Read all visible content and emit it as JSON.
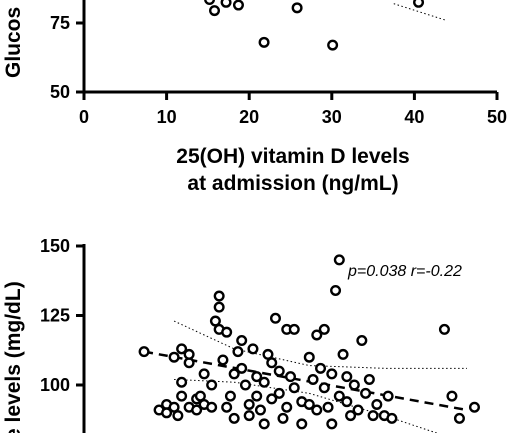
{
  "chart_data": [
    {
      "type": "scatter",
      "title": "",
      "xlabel_line1": "25(OH) vitamin D levels",
      "xlabel_line2": "at admission (ng/mL)",
      "ylabel": "Glucos",
      "xlim": [
        0,
        50
      ],
      "ylim": [
        50,
        100
      ],
      "x_ticks": [
        0,
        10,
        20,
        30,
        40,
        50
      ],
      "y_ticks": [
        50,
        75
      ],
      "points": [
        {
          "x": 15.2,
          "y": 83.5
        },
        {
          "x": 15.8,
          "y": 79.5
        },
        {
          "x": 17.2,
          "y": 82.5
        },
        {
          "x": 18.7,
          "y": 81.5
        },
        {
          "x": 25.8,
          "y": 80.5
        },
        {
          "x": 21.8,
          "y": 68
        },
        {
          "x": 30.1,
          "y": 67
        },
        {
          "x": 40.5,
          "y": 82.5
        }
      ],
      "ci_upper": [
        {
          "x": 37.5,
          "y": 82
        },
        {
          "x": 43.8,
          "y": 76
        }
      ]
    },
    {
      "type": "scatter",
      "title": "",
      "ylabel": "e levels (mg/dL)",
      "annotation": "p=0.038 r=-0.22",
      "ylim": [
        80,
        150
      ],
      "y_ticks": [
        100,
        125,
        150
      ],
      "x_ticks": [],
      "points": [
        {
          "x": 8,
          "y": 112
        },
        {
          "x": 10,
          "y": 91
        },
        {
          "x": 11,
          "y": 93
        },
        {
          "x": 11,
          "y": 90
        },
        {
          "x": 12,
          "y": 92
        },
        {
          "x": 12,
          "y": 110
        },
        {
          "x": 12.5,
          "y": 89
        },
        {
          "x": 13,
          "y": 96
        },
        {
          "x": 13,
          "y": 113
        },
        {
          "x": 13,
          "y": 101
        },
        {
          "x": 14,
          "y": 108
        },
        {
          "x": 14,
          "y": 92
        },
        {
          "x": 14,
          "y": 111
        },
        {
          "x": 15,
          "y": 91
        },
        {
          "x": 15,
          "y": 95
        },
        {
          "x": 15.5,
          "y": 96
        },
        {
          "x": 16,
          "y": 93
        },
        {
          "x": 16,
          "y": 104
        },
        {
          "x": 17,
          "y": 100
        },
        {
          "x": 17,
          "y": 92
        },
        {
          "x": 17.5,
          "y": 123
        },
        {
          "x": 18,
          "y": 128
        },
        {
          "x": 18,
          "y": 132
        },
        {
          "x": 18,
          "y": 120
        },
        {
          "x": 18.5,
          "y": 109
        },
        {
          "x": 19,
          "y": 119
        },
        {
          "x": 19,
          "y": 92
        },
        {
          "x": 19.5,
          "y": 96
        },
        {
          "x": 20,
          "y": 104
        },
        {
          "x": 20,
          "y": 88
        },
        {
          "x": 20.5,
          "y": 112
        },
        {
          "x": 21,
          "y": 116
        },
        {
          "x": 21,
          "y": 106
        },
        {
          "x": 21.5,
          "y": 100
        },
        {
          "x": 22,
          "y": 93
        },
        {
          "x": 22,
          "y": 89
        },
        {
          "x": 22.5,
          "y": 113
        },
        {
          "x": 23,
          "y": 103
        },
        {
          "x": 23,
          "y": 96
        },
        {
          "x": 23.5,
          "y": 91
        },
        {
          "x": 24,
          "y": 86
        },
        {
          "x": 24,
          "y": 101
        },
        {
          "x": 24.5,
          "y": 111
        },
        {
          "x": 25,
          "y": 108
        },
        {
          "x": 25,
          "y": 95
        },
        {
          "x": 25.5,
          "y": 124
        },
        {
          "x": 26,
          "y": 105
        },
        {
          "x": 26,
          "y": 97
        },
        {
          "x": 26.5,
          "y": 88
        },
        {
          "x": 27,
          "y": 120
        },
        {
          "x": 27,
          "y": 92
        },
        {
          "x": 27.5,
          "y": 103
        },
        {
          "x": 28,
          "y": 120
        },
        {
          "x": 28,
          "y": 99
        },
        {
          "x": 29,
          "y": 94
        },
        {
          "x": 29,
          "y": 86
        },
        {
          "x": 30,
          "y": 93
        },
        {
          "x": 30,
          "y": 110
        },
        {
          "x": 30.5,
          "y": 102
        },
        {
          "x": 31,
          "y": 118
        },
        {
          "x": 31,
          "y": 91
        },
        {
          "x": 31.5,
          "y": 106
        },
        {
          "x": 32,
          "y": 120
        },
        {
          "x": 32,
          "y": 99
        },
        {
          "x": 32.5,
          "y": 92
        },
        {
          "x": 33,
          "y": 104
        },
        {
          "x": 33,
          "y": 86
        },
        {
          "x": 33.5,
          "y": 134
        },
        {
          "x": 34,
          "y": 145
        },
        {
          "x": 34,
          "y": 96
        },
        {
          "x": 34.5,
          "y": 111
        },
        {
          "x": 35,
          "y": 94
        },
        {
          "x": 35,
          "y": 103
        },
        {
          "x": 35.5,
          "y": 89
        },
        {
          "x": 36,
          "y": 100
        },
        {
          "x": 36.5,
          "y": 91
        },
        {
          "x": 37,
          "y": 116
        },
        {
          "x": 37.5,
          "y": 97
        },
        {
          "x": 38,
          "y": 102
        },
        {
          "x": 38.5,
          "y": 89
        },
        {
          "x": 39,
          "y": 93
        },
        {
          "x": 40,
          "y": 89
        },
        {
          "x": 40.5,
          "y": 96
        },
        {
          "x": 41,
          "y": 88
        },
        {
          "x": 48,
          "y": 120
        },
        {
          "x": 49,
          "y": 96
        },
        {
          "x": 50,
          "y": 88
        },
        {
          "x": 52,
          "y": 92
        }
      ],
      "fit_line": [
        {
          "x": 8,
          "y": 112
        },
        {
          "x": 51,
          "y": 91
        }
      ],
      "ci_upper": [
        {
          "x": 12,
          "y": 123
        },
        {
          "x": 20,
          "y": 113
        },
        {
          "x": 30,
          "y": 107
        },
        {
          "x": 40,
          "y": 106
        },
        {
          "x": 51,
          "y": 106
        }
      ],
      "ci_lower": [
        {
          "x": 12,
          "y": 102
        },
        {
          "x": 20,
          "y": 101
        },
        {
          "x": 30,
          "y": 97
        },
        {
          "x": 40,
          "y": 89
        },
        {
          "x": 50,
          "y": 80
        }
      ]
    }
  ]
}
